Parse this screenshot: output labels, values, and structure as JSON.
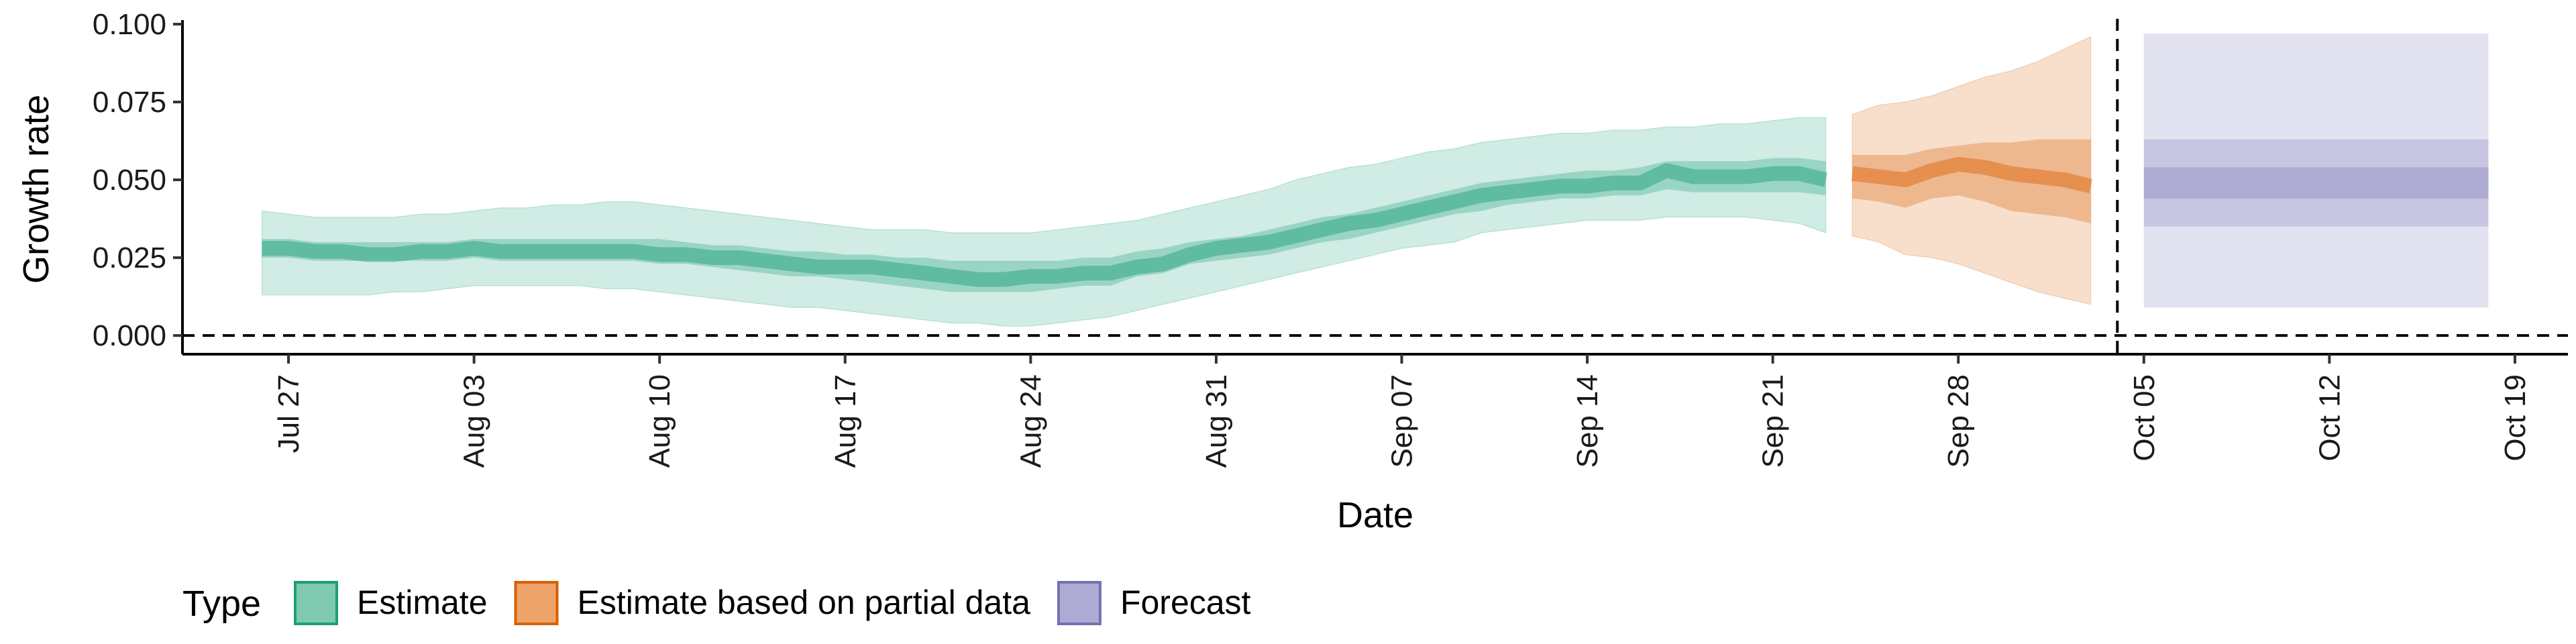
{
  "chart_data": {
    "type": "area",
    "xlabel": "Date",
    "ylabel": "Growth rate",
    "ylim": [
      -0.006,
      0.1
    ],
    "xlim": [
      "2020-07-23",
      "2020-10-21"
    ],
    "yticks": [
      0.0,
      0.025,
      0.05,
      0.075,
      0.1
    ],
    "ytick_labels": [
      "0.000",
      "0.025",
      "0.050",
      "0.075",
      "0.100"
    ],
    "xticks": [
      "2020-07-27",
      "2020-08-03",
      "2020-08-10",
      "2020-08-17",
      "2020-08-24",
      "2020-08-31",
      "2020-09-07",
      "2020-09-14",
      "2020-09-21",
      "2020-09-28",
      "2020-10-05",
      "2020-10-12",
      "2020-10-19"
    ],
    "xtick_labels": [
      "Jul 27",
      "Aug 03",
      "Aug 10",
      "Aug 17",
      "Aug 24",
      "Aug 31",
      "Sep 07",
      "Sep 14",
      "Sep 21",
      "Sep 28",
      "Oct 05",
      "Oct 12",
      "Oct 19"
    ],
    "hlines": [
      0
    ],
    "vlines": [
      "2020-10-04"
    ],
    "legend": {
      "title": "Type",
      "position": "bottom",
      "entries": [
        {
          "label": "Estimate",
          "fill": "#7fc9b0",
          "stroke": "#1b9e77"
        },
        {
          "label": "Estimate based on partial data",
          "fill": "#eea36a",
          "stroke": "#d95f02"
        },
        {
          "label": "Forecast",
          "fill": "#aeaad3",
          "stroke": "#7570b3"
        }
      ]
    },
    "series": [
      {
        "type_name": "Estimate",
        "color": "#1b9e77",
        "x": [
          "2020-07-26",
          "2020-07-27",
          "2020-07-28",
          "2020-07-29",
          "2020-07-30",
          "2020-07-31",
          "2020-08-01",
          "2020-08-02",
          "2020-08-03",
          "2020-08-04",
          "2020-08-05",
          "2020-08-06",
          "2020-08-07",
          "2020-08-08",
          "2020-08-09",
          "2020-08-10",
          "2020-08-11",
          "2020-08-12",
          "2020-08-13",
          "2020-08-14",
          "2020-08-15",
          "2020-08-16",
          "2020-08-17",
          "2020-08-18",
          "2020-08-19",
          "2020-08-20",
          "2020-08-21",
          "2020-08-22",
          "2020-08-23",
          "2020-08-24",
          "2020-08-25",
          "2020-08-26",
          "2020-08-27",
          "2020-08-28",
          "2020-08-29",
          "2020-08-30",
          "2020-08-31",
          "2020-09-01",
          "2020-09-02",
          "2020-09-03",
          "2020-09-04",
          "2020-09-05",
          "2020-09-06",
          "2020-09-07",
          "2020-09-08",
          "2020-09-09",
          "2020-09-10",
          "2020-09-11",
          "2020-09-12",
          "2020-09-13",
          "2020-09-14",
          "2020-09-15",
          "2020-09-16",
          "2020-09-17",
          "2020-09-18",
          "2020-09-19",
          "2020-09-20",
          "2020-09-21",
          "2020-09-22",
          "2020-09-23"
        ],
        "median": [
          0.028,
          0.028,
          0.027,
          0.027,
          0.026,
          0.026,
          0.027,
          0.027,
          0.028,
          0.027,
          0.027,
          0.027,
          0.027,
          0.027,
          0.027,
          0.026,
          0.026,
          0.025,
          0.025,
          0.024,
          0.023,
          0.022,
          0.022,
          0.022,
          0.021,
          0.02,
          0.019,
          0.018,
          0.018,
          0.019,
          0.019,
          0.02,
          0.02,
          0.022,
          0.023,
          0.026,
          0.028,
          0.029,
          0.03,
          0.032,
          0.034,
          0.036,
          0.037,
          0.039,
          0.041,
          0.043,
          0.045,
          0.046,
          0.047,
          0.048,
          0.048,
          0.049,
          0.049,
          0.053,
          0.051,
          0.051,
          0.051,
          0.052,
          0.052,
          0.05
        ],
        "lower_50": [
          0.025,
          0.025,
          0.024,
          0.024,
          0.024,
          0.024,
          0.024,
          0.024,
          0.025,
          0.024,
          0.024,
          0.024,
          0.024,
          0.024,
          0.024,
          0.023,
          0.023,
          0.022,
          0.021,
          0.02,
          0.019,
          0.019,
          0.018,
          0.017,
          0.016,
          0.015,
          0.014,
          0.014,
          0.014,
          0.014,
          0.015,
          0.016,
          0.016,
          0.019,
          0.02,
          0.023,
          0.024,
          0.025,
          0.026,
          0.028,
          0.03,
          0.031,
          0.033,
          0.035,
          0.037,
          0.039,
          0.04,
          0.042,
          0.043,
          0.044,
          0.044,
          0.045,
          0.045,
          0.047,
          0.046,
          0.046,
          0.046,
          0.046,
          0.046,
          0.045
        ],
        "upper_50": [
          0.031,
          0.031,
          0.03,
          0.03,
          0.03,
          0.03,
          0.03,
          0.03,
          0.031,
          0.031,
          0.031,
          0.031,
          0.031,
          0.031,
          0.031,
          0.031,
          0.03,
          0.029,
          0.029,
          0.028,
          0.027,
          0.027,
          0.026,
          0.026,
          0.025,
          0.025,
          0.024,
          0.024,
          0.024,
          0.024,
          0.024,
          0.025,
          0.025,
          0.027,
          0.028,
          0.03,
          0.031,
          0.032,
          0.034,
          0.036,
          0.038,
          0.039,
          0.041,
          0.043,
          0.045,
          0.047,
          0.049,
          0.05,
          0.051,
          0.052,
          0.053,
          0.053,
          0.054,
          0.056,
          0.056,
          0.056,
          0.056,
          0.057,
          0.057,
          0.056
        ],
        "lower_90": [
          0.013,
          0.013,
          0.013,
          0.013,
          0.013,
          0.014,
          0.014,
          0.015,
          0.016,
          0.016,
          0.016,
          0.016,
          0.016,
          0.015,
          0.015,
          0.014,
          0.013,
          0.012,
          0.011,
          0.01,
          0.009,
          0.009,
          0.008,
          0.007,
          0.006,
          0.005,
          0.004,
          0.004,
          0.003,
          0.003,
          0.004,
          0.005,
          0.006,
          0.008,
          0.01,
          0.012,
          0.014,
          0.016,
          0.018,
          0.02,
          0.022,
          0.024,
          0.026,
          0.028,
          0.029,
          0.03,
          0.033,
          0.034,
          0.035,
          0.036,
          0.037,
          0.037,
          0.037,
          0.038,
          0.038,
          0.038,
          0.038,
          0.037,
          0.036,
          0.033
        ],
        "upper_90": [
          0.04,
          0.039,
          0.038,
          0.038,
          0.038,
          0.038,
          0.039,
          0.039,
          0.04,
          0.041,
          0.041,
          0.042,
          0.042,
          0.043,
          0.043,
          0.042,
          0.041,
          0.04,
          0.039,
          0.038,
          0.037,
          0.036,
          0.035,
          0.034,
          0.034,
          0.034,
          0.033,
          0.033,
          0.033,
          0.033,
          0.034,
          0.035,
          0.036,
          0.037,
          0.039,
          0.041,
          0.043,
          0.045,
          0.047,
          0.05,
          0.052,
          0.054,
          0.055,
          0.057,
          0.059,
          0.06,
          0.062,
          0.063,
          0.064,
          0.065,
          0.065,
          0.066,
          0.066,
          0.067,
          0.067,
          0.068,
          0.068,
          0.069,
          0.07,
          0.07
        ]
      },
      {
        "type_name": "Estimate based on partial data",
        "color": "#d95f02",
        "x": [
          "2020-09-24",
          "2020-09-25",
          "2020-09-26",
          "2020-09-27",
          "2020-09-28",
          "2020-09-29",
          "2020-09-30",
          "2020-10-01",
          "2020-10-02",
          "2020-10-03"
        ],
        "median": [
          0.052,
          0.051,
          0.05,
          0.053,
          0.055,
          0.054,
          0.052,
          0.051,
          0.05,
          0.048
        ],
        "lower_50": [
          0.044,
          0.043,
          0.041,
          0.044,
          0.045,
          0.043,
          0.04,
          0.039,
          0.038,
          0.036
        ],
        "upper_50": [
          0.058,
          0.058,
          0.058,
          0.06,
          0.061,
          0.062,
          0.062,
          0.063,
          0.063,
          0.063
        ],
        "lower_90": [
          0.032,
          0.03,
          0.026,
          0.025,
          0.023,
          0.02,
          0.017,
          0.014,
          0.012,
          0.01
        ],
        "upper_90": [
          0.071,
          0.074,
          0.075,
          0.077,
          0.08,
          0.083,
          0.085,
          0.088,
          0.092,
          0.096
        ]
      },
      {
        "type_name": "Forecast",
        "color": "#7570b3",
        "x": [
          "2020-10-05",
          "2020-10-18"
        ],
        "median": [
          0.049,
          0.049
        ],
        "lower_50": [
          0.044,
          0.044
        ],
        "upper_50": [
          0.054,
          0.054
        ],
        "lower_75": [
          0.035,
          0.035
        ],
        "upper_75": [
          0.063,
          0.063
        ],
        "lower_90": [
          0.009,
          0.009
        ],
        "upper_90": [
          0.097,
          0.097
        ]
      }
    ]
  }
}
